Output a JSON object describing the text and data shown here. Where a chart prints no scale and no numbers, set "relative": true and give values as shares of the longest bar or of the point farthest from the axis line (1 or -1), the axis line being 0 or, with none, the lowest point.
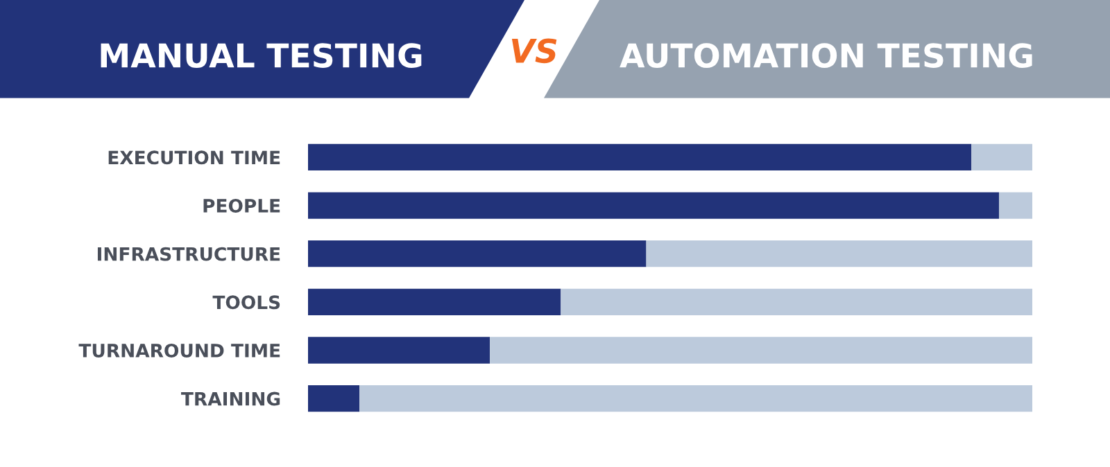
{
  "chart_data": {
    "type": "bar",
    "orientation": "horizontal",
    "stacked": true,
    "relative": true,
    "legend": "top",
    "grid": false,
    "annotations": [
      "VS"
    ],
    "categories": [
      "EXECUTION TIME",
      "PEOPLE",
      "INFRASTRUCTURE",
      "TOOLS",
      "TURNAROUND TIME",
      "TRAINING"
    ],
    "series": [
      {
        "name": "MANUAL TESTING",
        "color": "#22337a",
        "values": [
          0.916,
          0.954,
          0.467,
          0.349,
          0.251,
          0.071
        ]
      },
      {
        "name": "AUTOMATION TESTING",
        "color": "#bccadc",
        "values": [
          0.084,
          0.046,
          0.533,
          0.651,
          0.749,
          0.929
        ]
      }
    ]
  }
}
